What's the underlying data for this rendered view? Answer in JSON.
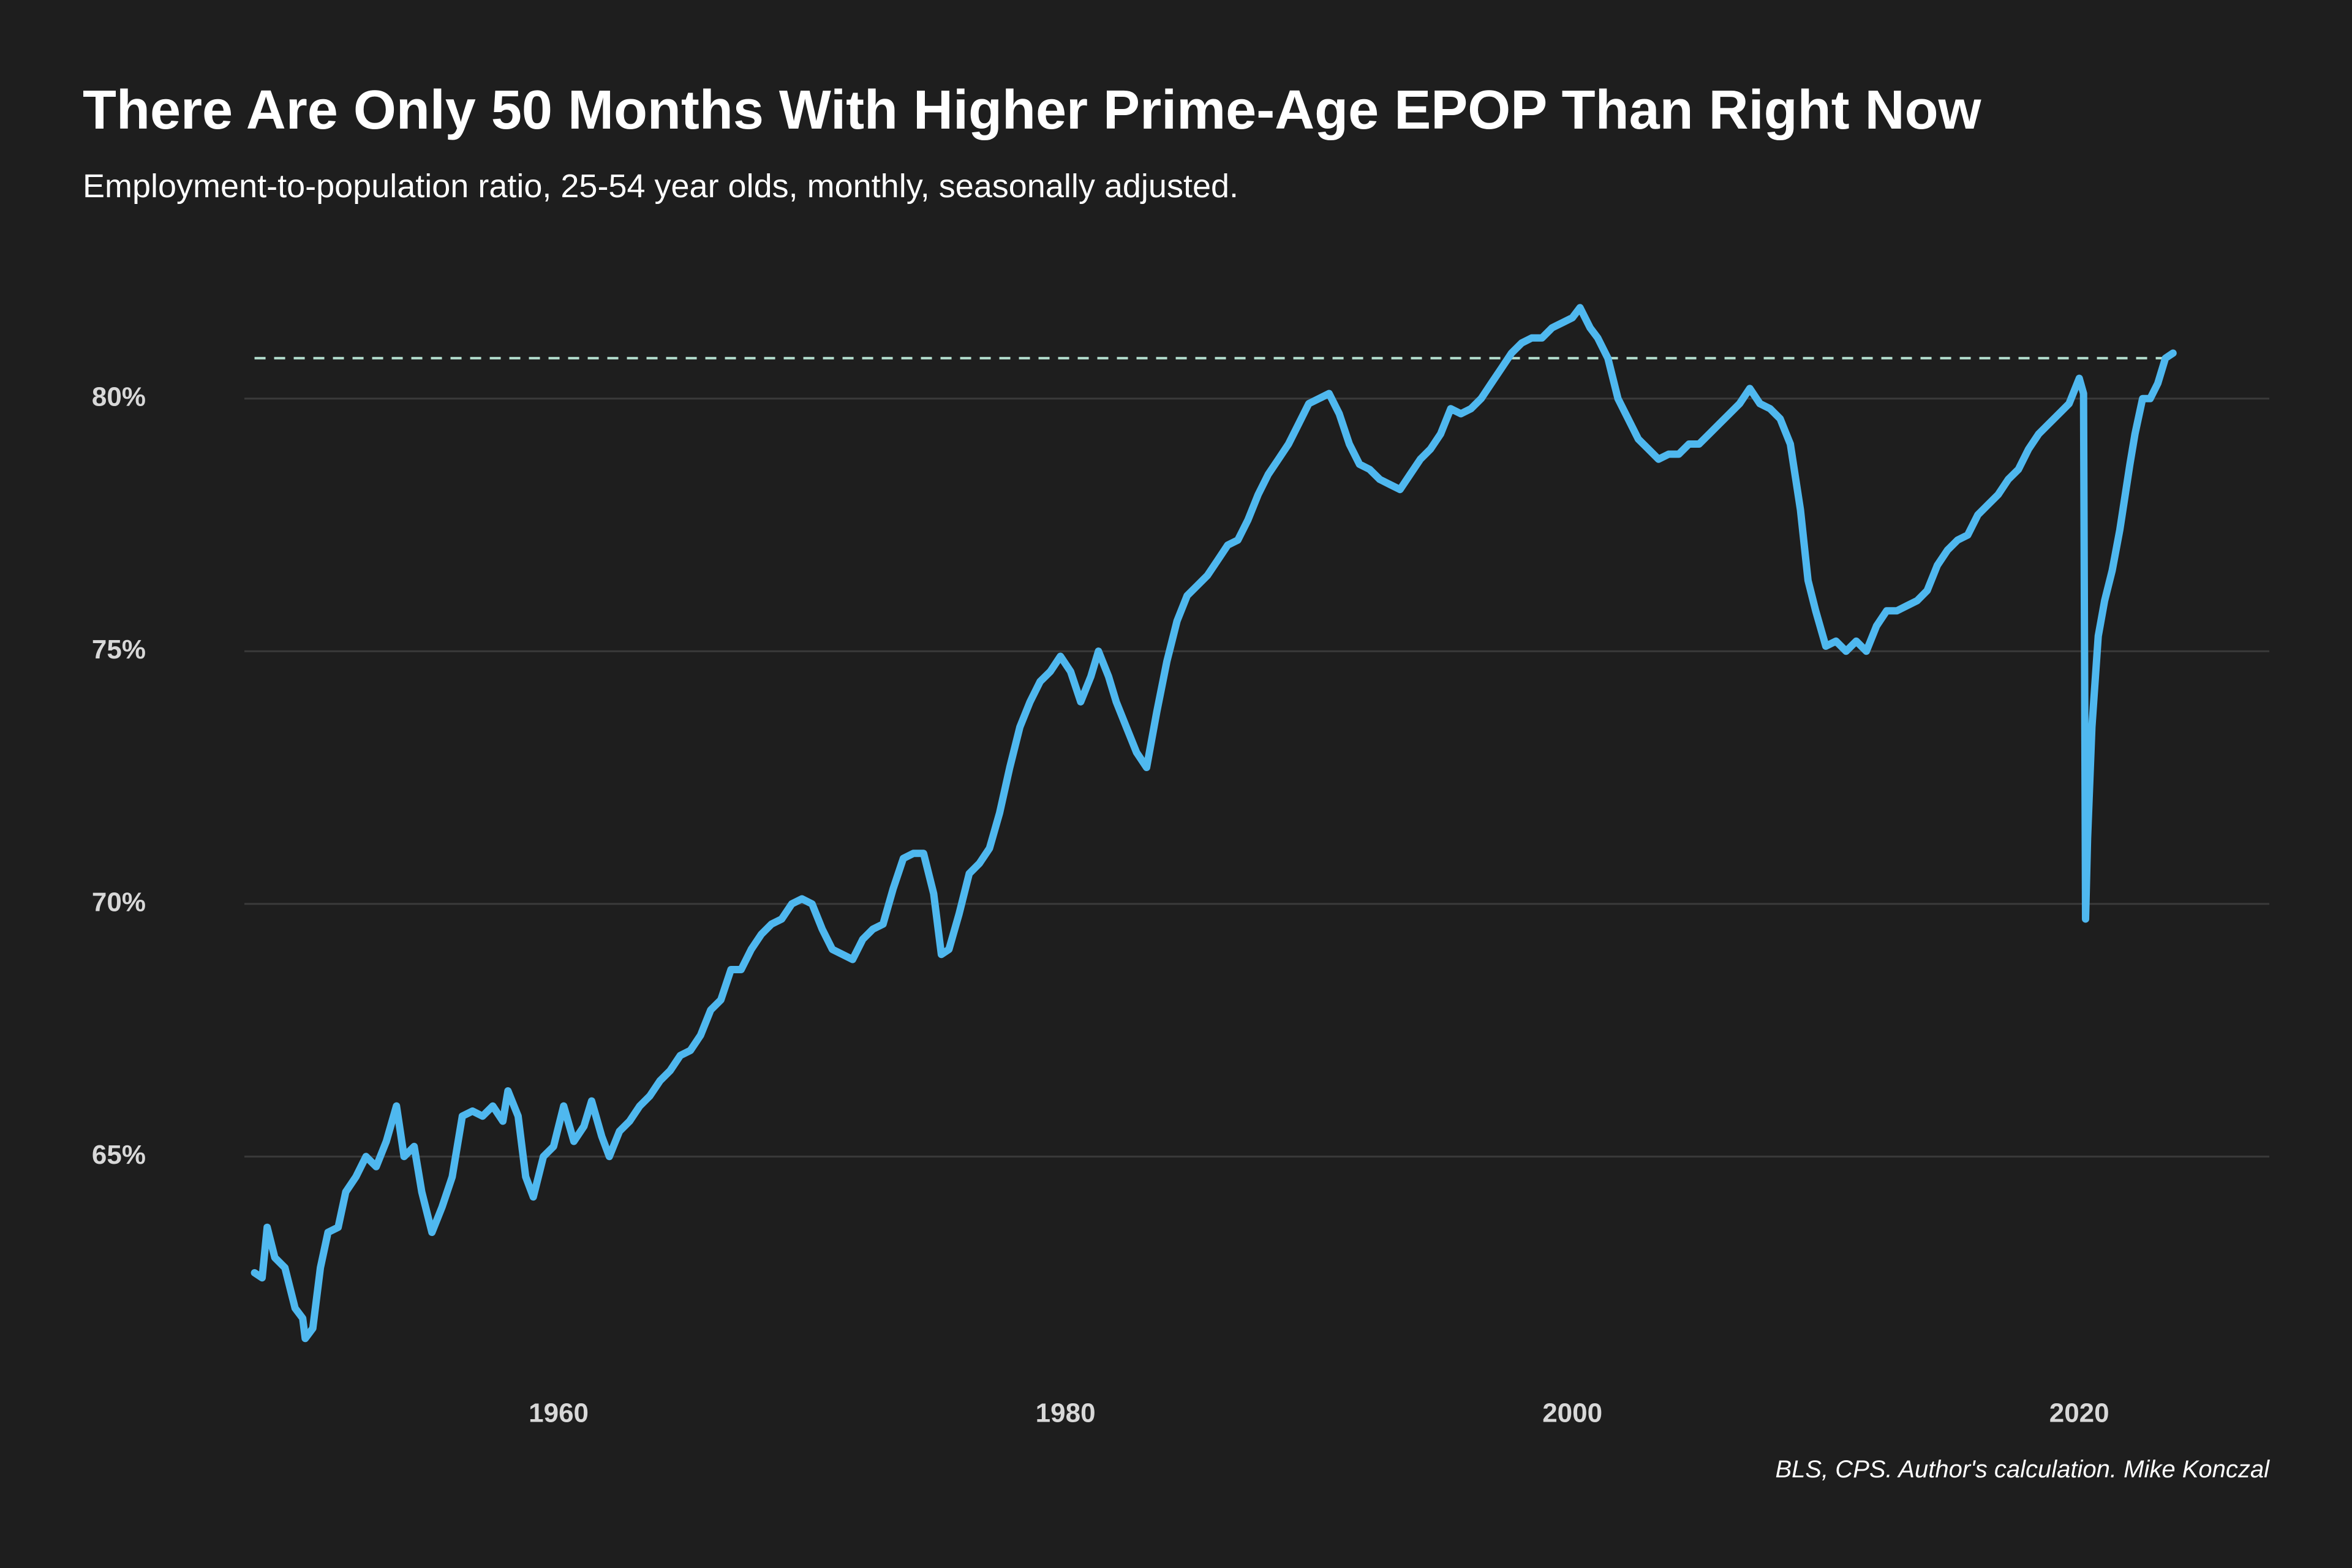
{
  "chart_data": {
    "type": "line",
    "title": "There Are Only 50 Months With Higher Prime-Age EPOP Than Right Now",
    "subtitle": "Employment-to-population ratio, 25-54 year olds, monthly, seasonally adjusted.",
    "source": "BLS, CPS. Author's calculation. Mike Konczal",
    "xlim": [
      1947.6,
      2027.5
    ],
    "xticks": [
      1960,
      1980,
      2000,
      2020
    ],
    "ylim": [
      60.3,
      83.5
    ],
    "yticks": [
      {
        "value": 65,
        "label": "65%"
      },
      {
        "value": 70,
        "label": "70%"
      },
      {
        "value": 75,
        "label": "75%"
      },
      {
        "value": 80,
        "label": "80%"
      }
    ],
    "grid": true,
    "hline": 80.8,
    "hline_color": "#b5e0d0",
    "x": [
      1948.0,
      1948.3,
      1948.5,
      1948.8,
      1949.2,
      1949.6,
      1949.9,
      1950.0,
      1950.3,
      1950.6,
      1950.9,
      1951.3,
      1951.6,
      1952.0,
      1952.4,
      1952.8,
      1953.2,
      1953.6,
      1953.9,
      1954.3,
      1954.6,
      1955.0,
      1955.4,
      1955.8,
      1956.2,
      1956.6,
      1957.0,
      1957.4,
      1957.8,
      1958.0,
      1958.4,
      1958.7,
      1959.0,
      1959.4,
      1959.8,
      1960.2,
      1960.6,
      1961.0,
      1961.3,
      1961.7,
      1962.0,
      1962.4,
      1962.8,
      1963.2,
      1963.6,
      1964.0,
      1964.4,
      1964.8,
      1965.2,
      1965.6,
      1966.0,
      1966.4,
      1966.8,
      1967.2,
      1967.6,
      1968.0,
      1968.4,
      1968.8,
      1969.2,
      1969.6,
      1970.0,
      1970.4,
      1970.8,
      1971.2,
      1971.6,
      1972.0,
      1972.4,
      1972.8,
      1973.2,
      1973.6,
      1974.0,
      1974.4,
      1974.8,
      1975.1,
      1975.4,
      1975.8,
      1976.2,
      1976.6,
      1977.0,
      1977.4,
      1977.8,
      1978.2,
      1978.6,
      1979.0,
      1979.4,
      1979.8,
      1980.2,
      1980.6,
      1981.0,
      1981.3,
      1981.7,
      1982.0,
      1982.4,
      1982.8,
      1983.2,
      1983.6,
      1984.0,
      1984.4,
      1984.8,
      1985.2,
      1985.6,
      1986.0,
      1986.4,
      1986.8,
      1987.2,
      1987.6,
      1988.0,
      1988.4,
      1988.8,
      1989.2,
      1989.6,
      1990.0,
      1990.4,
      1990.8,
      1991.2,
      1991.6,
      1992.0,
      1992.4,
      1992.8,
      1993.2,
      1993.6,
      1994.0,
      1994.4,
      1994.8,
      1995.2,
      1995.6,
      1996.0,
      1996.4,
      1996.8,
      1997.2,
      1997.6,
      1998.0,
      1998.4,
      1998.8,
      1999.2,
      1999.6,
      2000.0,
      2000.3,
      2000.7,
      2001.0,
      2001.4,
      2001.8,
      2002.2,
      2002.6,
      2003.0,
      2003.4,
      2003.8,
      2004.2,
      2004.6,
      2005.0,
      2005.4,
      2005.8,
      2006.2,
      2006.6,
      2007.0,
      2007.4,
      2007.8,
      2008.2,
      2008.6,
      2009.0,
      2009.3,
      2009.6,
      2010.0,
      2010.4,
      2010.8,
      2011.2,
      2011.6,
      2012.0,
      2012.4,
      2012.8,
      2013.2,
      2013.6,
      2014.0,
      2014.4,
      2014.8,
      2015.2,
      2015.6,
      2016.0,
      2016.4,
      2016.8,
      2017.2,
      2017.6,
      2018.0,
      2018.4,
      2018.8,
      2019.2,
      2019.6,
      2020.0,
      2020.17,
      2020.25,
      2020.33,
      2020.5,
      2020.75,
      2021.0,
      2021.3,
      2021.6,
      2022.0,
      2022.2,
      2022.5,
      2022.8,
      2023.1,
      2023.4,
      2023.7
    ],
    "series": [
      {
        "color": "#4fb8ef",
        "values": [
          62.7,
          62.6,
          63.6,
          63.0,
          62.8,
          62.0,
          61.8,
          61.4,
          61.6,
          62.8,
          63.5,
          63.6,
          64.3,
          64.6,
          65.0,
          64.8,
          65.3,
          66.0,
          65.0,
          65.2,
          64.3,
          63.5,
          64.0,
          64.6,
          65.8,
          65.9,
          65.8,
          66.0,
          65.7,
          66.3,
          65.8,
          64.6,
          64.2,
          65.0,
          65.2,
          66.0,
          65.3,
          65.6,
          66.1,
          65.4,
          65.0,
          65.5,
          65.7,
          66.0,
          66.2,
          66.5,
          66.7,
          67.0,
          67.1,
          67.4,
          67.9,
          68.1,
          68.7,
          68.7,
          69.1,
          69.4,
          69.6,
          69.7,
          70.0,
          70.1,
          70.0,
          69.5,
          69.1,
          69.0,
          68.9,
          69.3,
          69.5,
          69.6,
          70.3,
          70.9,
          71.0,
          71.0,
          70.2,
          69.0,
          69.1,
          69.8,
          70.6,
          70.8,
          71.1,
          71.8,
          72.7,
          73.5,
          74.0,
          74.4,
          74.6,
          74.9,
          74.6,
          74.0,
          74.5,
          75.0,
          74.5,
          74.0,
          73.5,
          73.0,
          72.7,
          73.8,
          74.8,
          75.6,
          76.1,
          76.3,
          76.5,
          76.8,
          77.1,
          77.2,
          77.6,
          78.1,
          78.5,
          78.8,
          79.1,
          79.5,
          79.9,
          80.0,
          80.1,
          79.7,
          79.1,
          78.7,
          78.6,
          78.4,
          78.3,
          78.2,
          78.5,
          78.8,
          79.0,
          79.3,
          79.8,
          79.7,
          79.8,
          80.0,
          80.3,
          80.6,
          80.9,
          81.1,
          81.2,
          81.2,
          81.4,
          81.5,
          81.6,
          81.8,
          81.4,
          81.2,
          80.8,
          80.0,
          79.6,
          79.2,
          79.0,
          78.8,
          78.9,
          78.9,
          79.1,
          79.1,
          79.3,
          79.5,
          79.7,
          79.9,
          80.2,
          79.9,
          79.8,
          79.6,
          79.1,
          77.8,
          76.4,
          75.8,
          75.1,
          75.2,
          75.0,
          75.2,
          75.0,
          75.5,
          75.8,
          75.8,
          75.9,
          76.0,
          76.2,
          76.7,
          77.0,
          77.2,
          77.3,
          77.7,
          77.9,
          78.1,
          78.4,
          78.6,
          79.0,
          79.3,
          79.5,
          79.7,
          79.9,
          80.4,
          80.1,
          69.7,
          71.3,
          73.5,
          75.3,
          76.0,
          76.6,
          77.4,
          78.7,
          79.3,
          80.0,
          80.0,
          80.3,
          80.8,
          80.9
        ]
      }
    ]
  }
}
